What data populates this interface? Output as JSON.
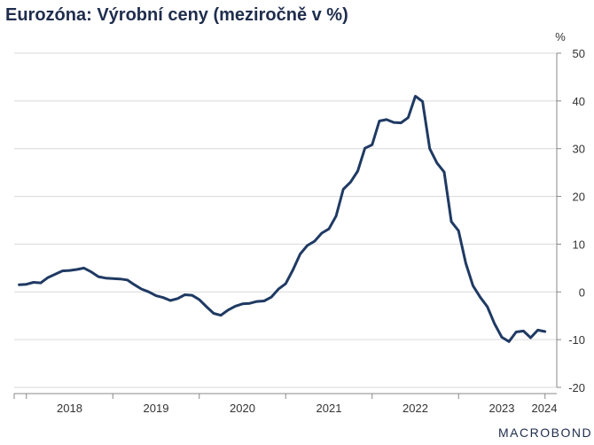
{
  "title": "Eurozóna: Výrobní ceny (meziročně v %)",
  "brand": "MACROBOND",
  "chart_data": {
    "type": "line",
    "title": "Eurozóna: Výrobní ceny (meziročně v %)",
    "y_unit": "%",
    "ylim": [
      -20,
      50
    ],
    "y_ticks": [
      50,
      40,
      30,
      20,
      10,
      0,
      -10,
      -20
    ],
    "y_axis_side": "right",
    "grid": true,
    "x_ticks": [
      "2018",
      "2019",
      "2020",
      "2021",
      "2022",
      "2023",
      "2024"
    ],
    "line_color": "#1f3a63",
    "series": [
      {
        "x": [
          "2017-12",
          "2018-01",
          "2018-02",
          "2018-03",
          "2018-04",
          "2018-05",
          "2018-06",
          "2018-07",
          "2018-08",
          "2018-09",
          "2018-10",
          "2018-11",
          "2018-12",
          "2019-01",
          "2019-02",
          "2019-03",
          "2019-04",
          "2019-05",
          "2019-06",
          "2019-07",
          "2019-08",
          "2019-09",
          "2019-10",
          "2019-11",
          "2019-12",
          "2020-01",
          "2020-02",
          "2020-03",
          "2020-04",
          "2020-05",
          "2020-06",
          "2020-07",
          "2020-08",
          "2020-09",
          "2020-10",
          "2020-11",
          "2020-12",
          "2021-01",
          "2021-02",
          "2021-03",
          "2021-04",
          "2021-05",
          "2021-06",
          "2021-07",
          "2021-08",
          "2021-09",
          "2021-10",
          "2021-11",
          "2021-12",
          "2022-01",
          "2022-02",
          "2022-03",
          "2022-04",
          "2022-05",
          "2022-06",
          "2022-07",
          "2022-08",
          "2022-09",
          "2022-10",
          "2022-11",
          "2022-12",
          "2023-01",
          "2023-02",
          "2023-03",
          "2023-04",
          "2023-05",
          "2023-06",
          "2023-07",
          "2023-08",
          "2023-09",
          "2023-10",
          "2023-11",
          "2023-12",
          "2024-01"
        ],
        "values": [
          1.5,
          1.6,
          2.0,
          1.9,
          3.0,
          3.7,
          4.4,
          4.5,
          4.7,
          5.0,
          4.2,
          3.2,
          2.9,
          2.8,
          2.7,
          2.5,
          1.5,
          0.6,
          0.0,
          -0.8,
          -1.2,
          -1.8,
          -1.4,
          -0.6,
          -0.7,
          -1.6,
          -3.1,
          -4.5,
          -4.9,
          -3.8,
          -3.0,
          -2.5,
          -2.4,
          -2.0,
          -1.9,
          -1.1,
          0.6,
          1.7,
          4.6,
          7.9,
          9.7,
          10.6,
          12.3,
          13.2,
          15.9,
          21.5,
          23.0,
          25.3,
          30.1,
          30.8,
          35.8,
          36.1,
          35.5,
          35.4,
          36.5,
          41.0,
          39.9,
          30.0,
          27.0,
          25.1,
          14.7,
          12.8,
          6.0,
          1.3,
          -1.1,
          -3.1,
          -6.7,
          -9.5,
          -10.4,
          -8.4,
          -8.2,
          -9.6,
          -8.0,
          -8.3
        ]
      }
    ]
  }
}
